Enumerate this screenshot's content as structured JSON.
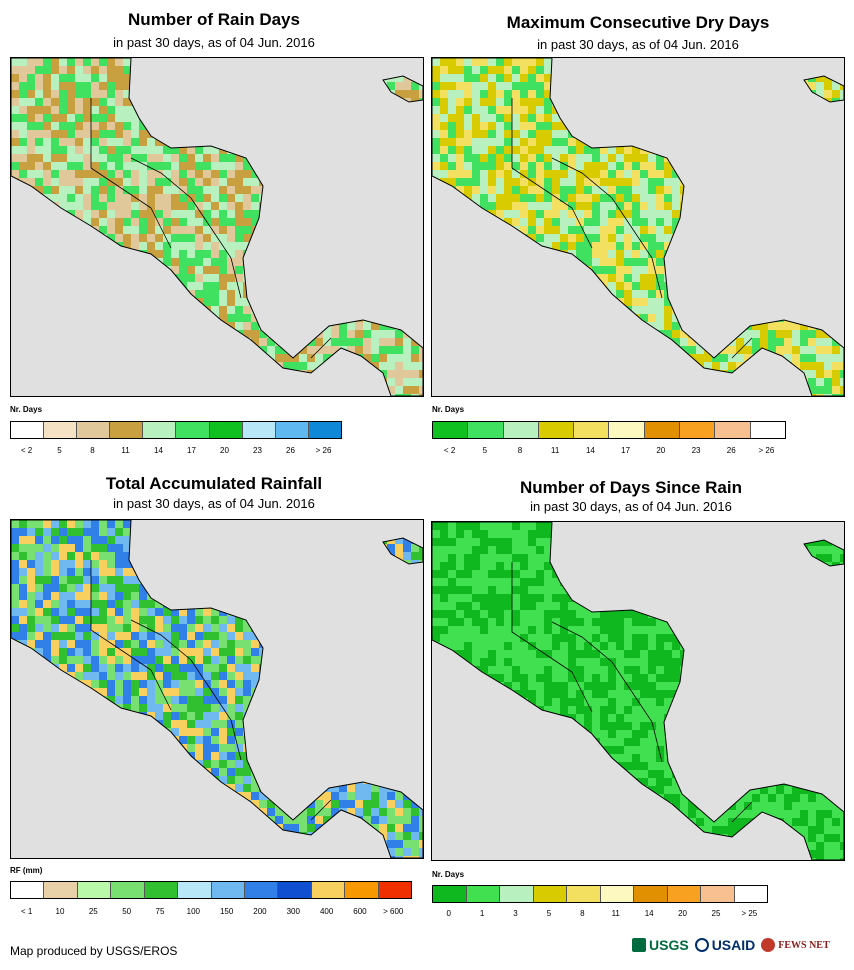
{
  "panels": [
    {
      "id": "rain-days",
      "title": "Number of Rain Days",
      "subtitle": "in past 30 days, as of 04 Jun. 2016",
      "legend_title": "Nr. Days",
      "legend_colors": [
        "#ffffff",
        "#f5e2c4",
        "#e0c89a",
        "#c8a040",
        "#b8f0c0",
        "#40e060",
        "#10c020",
        "#b8e8f8",
        "#60b8f0",
        "#1088d8"
      ],
      "legend_labels": [
        "< 2",
        "5",
        "8",
        "11",
        "14",
        "17",
        "20",
        "23",
        "26",
        "> 26"
      ],
      "dominant_classes": [
        2,
        3,
        4,
        5
      ]
    },
    {
      "id": "dry-days",
      "title": "Maximum Consecutive Dry Days",
      "subtitle": "in past 30 days, as of 04 Jun. 2016",
      "legend_title": "Nr. Days",
      "legend_colors": [
        "#10c020",
        "#40e060",
        "#b8f0c0",
        "#d8cc00",
        "#f4e060",
        "#fcf8c0",
        "#e09000",
        "#f8a020",
        "#f8c090",
        "#ffffff"
      ],
      "legend_labels": [
        "< 2",
        "5",
        "8",
        "11",
        "14",
        "17",
        "20",
        "23",
        "26",
        "> 26"
      ],
      "dominant_classes": [
        3,
        4,
        2,
        1
      ]
    },
    {
      "id": "rainfall",
      "title": "Total Accumulated Rainfall",
      "subtitle": "in past 30 days, as of 04 Jun. 2016",
      "legend_title": "RF (mm)",
      "legend_colors": [
        "#ffffff",
        "#e8d0a8",
        "#b8f8a8",
        "#78e070",
        "#30c030",
        "#b8e8f8",
        "#70b8f0",
        "#3080e8",
        "#1050d0",
        "#f8d060",
        "#f89800",
        "#f03000"
      ],
      "legend_labels": [
        "< 1",
        "10",
        "25",
        "50",
        "75",
        "100",
        "150",
        "200",
        "300",
        "400",
        "600",
        "> 600"
      ],
      "dominant_classes": [
        6,
        7,
        3,
        4,
        9
      ]
    },
    {
      "id": "days-since-rain",
      "title": "Number of Days Since Rain",
      "subtitle": "in past 30 days, as of 04 Jun. 2016",
      "legend_title": "Nr. Days",
      "legend_colors": [
        "#10b820",
        "#40e050",
        "#b8f0c0",
        "#d8cc00",
        "#f4e060",
        "#fcf8c0",
        "#e09000",
        "#f8a020",
        "#f8c090",
        "#ffffff"
      ],
      "legend_labels": [
        "0",
        "1",
        "3",
        "5",
        "8",
        "11",
        "14",
        "20",
        "25",
        "> 25"
      ],
      "dominant_classes": [
        0,
        1
      ]
    }
  ],
  "footer": "Map produced by USGS/EROS",
  "logos": [
    {
      "name": "USGS",
      "color": "#006b3f"
    },
    {
      "name": "USAID",
      "color": "#002f6c"
    },
    {
      "name": "FEWS NET",
      "color": "#8b1a1a"
    }
  ]
}
